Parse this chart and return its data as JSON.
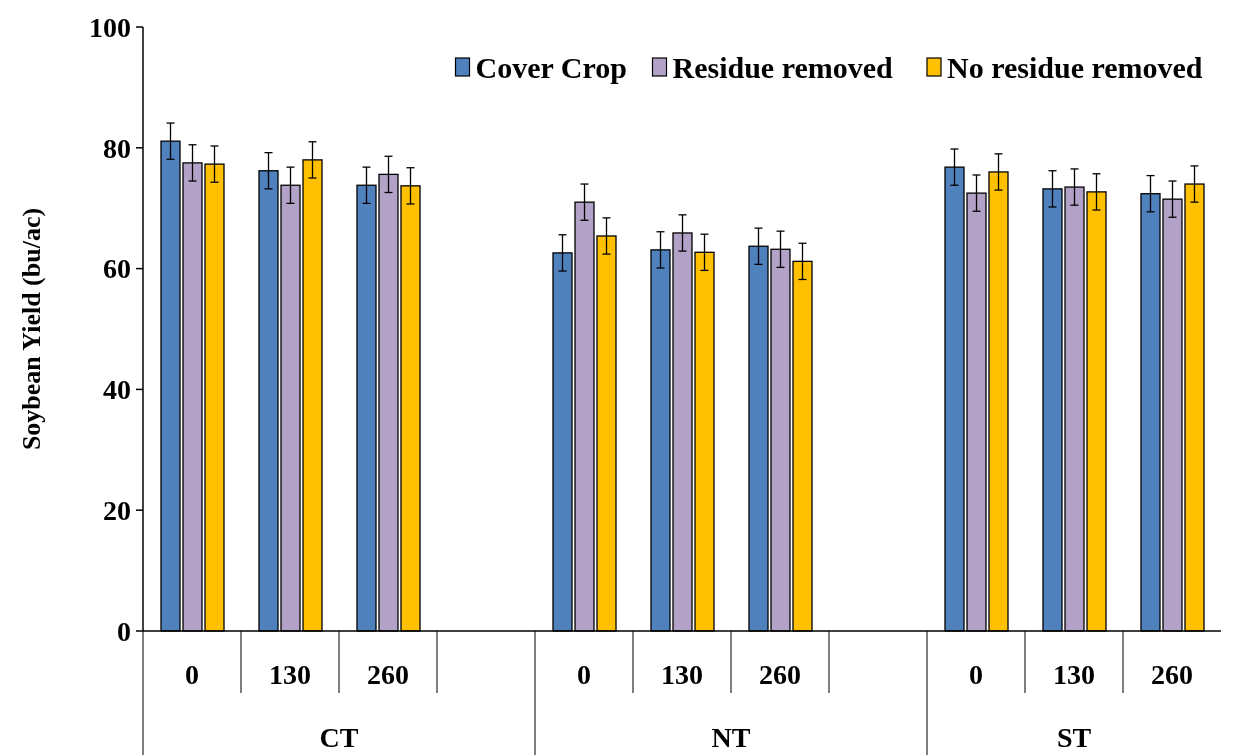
{
  "chart_data": {
    "type": "bar",
    "ylabel": "Soybean Yield (bu/ac)",
    "categories": [
      "0",
      "130",
      "260",
      null,
      "0",
      "130",
      "260",
      null,
      "0",
      "130",
      "260"
    ],
    "annotations": [
      "CT",
      "NT",
      "ST"
    ],
    "series": [
      {
        "name": "Cover Crop",
        "color": "#4f81bd",
        "values": [
          81.1,
          76.2,
          73.8,
          null,
          62.6,
          63.1,
          63.7,
          null,
          76.8,
          73.2,
          72.4
        ],
        "errors": [
          3,
          3,
          3,
          null,
          3,
          3,
          3,
          null,
          3,
          3,
          3
        ]
      },
      {
        "name": "Residue removed",
        "color": "#b3a2c7",
        "values": [
          77.5,
          73.8,
          75.6,
          null,
          71.0,
          65.9,
          63.2,
          null,
          72.5,
          73.5,
          71.5
        ],
        "errors": [
          3,
          3,
          3,
          null,
          3,
          3,
          3,
          null,
          3,
          3,
          3
        ]
      },
      {
        "name": "No residue removed",
        "color": "#ffc000",
        "values": [
          77.3,
          78.0,
          73.7,
          null,
          65.4,
          62.7,
          61.2,
          null,
          76.0,
          72.7,
          74.0
        ],
        "errors": [
          3,
          3,
          3,
          null,
          3,
          3,
          3,
          null,
          3,
          3,
          3
        ]
      }
    ],
    "ylim": [
      0,
      100
    ],
    "yticks": [
      0,
      20,
      40,
      60,
      80,
      100
    ],
    "legend": "top right"
  }
}
